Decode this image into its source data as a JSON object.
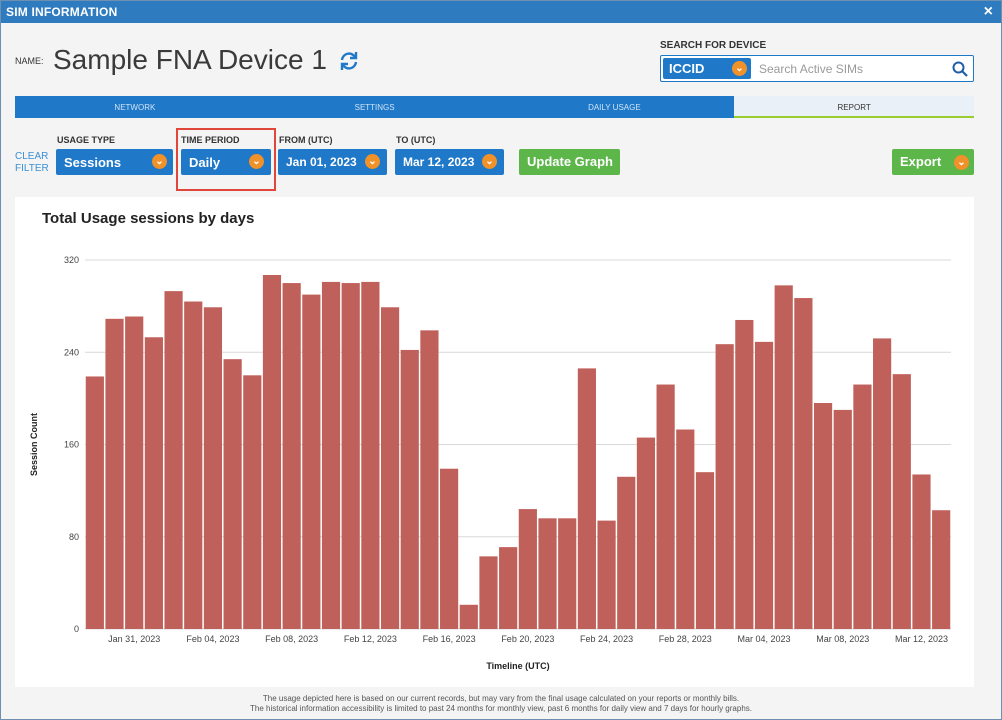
{
  "window": {
    "title": "SIM INFORMATION",
    "close": "×"
  },
  "device": {
    "name_label": "NAME:",
    "name": "Sample FNA Device 1"
  },
  "search": {
    "label": "SEARCH FOR DEVICE",
    "type": "ICCID",
    "placeholder": "Search Active SIMs"
  },
  "tabs": [
    {
      "label": "NETWORK",
      "active": false
    },
    {
      "label": "SETTINGS",
      "active": false
    },
    {
      "label": "DAILY USAGE",
      "active": false
    },
    {
      "label": "REPORT",
      "active": true
    }
  ],
  "filters": {
    "clear_filter": "CLEAR FILTER",
    "usage_type": {
      "label": "USAGE TYPE",
      "value": "Sessions"
    },
    "time_period": {
      "label": "TIME PERIOD",
      "value": "Daily"
    },
    "from": {
      "label": "FROM (UTC)",
      "value": "Jan 01, 2023"
    },
    "to": {
      "label": "TO (UTC)",
      "value": "Mar 12, 2023"
    },
    "update_button": "Update Graph",
    "export_button": "Export"
  },
  "colors": {
    "bar": "#c0605a",
    "accent": "#1f78c8",
    "green": "#5db64a",
    "orange": "#f0912a"
  },
  "chart_data": {
    "type": "bar",
    "title": "Total Usage sessions by days",
    "xlabel": "Timeline (UTC)",
    "ylabel": "Session Count",
    "ylim": [
      0,
      320
    ],
    "yticks": [
      0,
      80,
      160,
      240,
      320
    ],
    "grid": true,
    "xtick_labels": [
      "Jan 31, 2023",
      "Feb 04, 2023",
      "Feb 08, 2023",
      "Feb 12, 2023",
      "Feb 16, 2023",
      "Feb 20, 2023",
      "Feb 24, 2023",
      "Feb 28, 2023",
      "Mar 04, 2023",
      "Mar 08, 2023",
      "Mar 12, 2023"
    ],
    "xtick_positions": [
      2,
      6,
      10,
      14,
      18,
      22,
      26,
      30,
      34,
      38,
      42
    ],
    "values": [
      219,
      269,
      271,
      253,
      293,
      284,
      279,
      234,
      220,
      307,
      300,
      290,
      301,
      300,
      301,
      279,
      242,
      259,
      139,
      21,
      63,
      71,
      104,
      96,
      96,
      226,
      94,
      132,
      166,
      212,
      173,
      136,
      247,
      268,
      249,
      298,
      287,
      196,
      190,
      212,
      252,
      221,
      134,
      103
    ]
  },
  "footer": {
    "line1": "The usage depicted here is based on our current records, but may vary from the final usage calculated on your reports or monthly bills.",
    "line2": "The historical information accessibility is limited to past 24 months for monthly view, past 6 months for daily view and 7 days for hourly graphs."
  }
}
